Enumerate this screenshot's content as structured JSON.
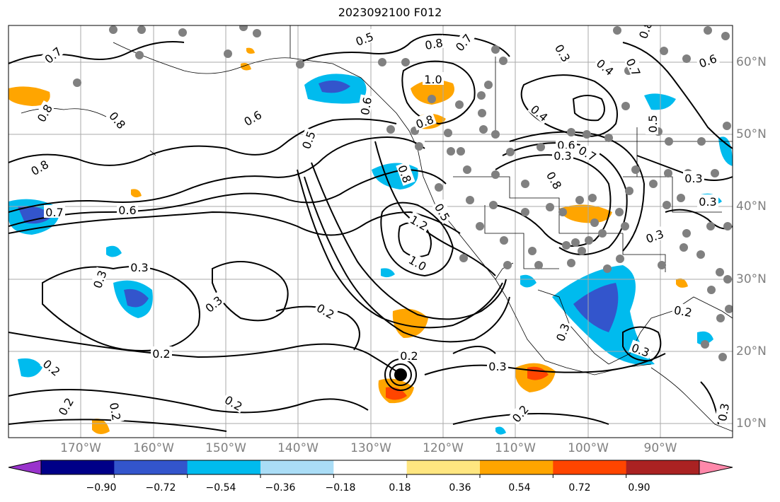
{
  "title": "2023092100 F012",
  "map": {
    "projection": "equirectangular",
    "lon_range": [
      -180,
      -80
    ],
    "lat_range": [
      8,
      65
    ],
    "gridlines": true,
    "lon_ticks": [
      "170°W",
      "160°W",
      "150°W",
      "140°W",
      "130°W",
      "120°W",
      "110°W",
      "100°W",
      "90°W"
    ],
    "lat_ticks": [
      "60°N",
      "50°N",
      "40°N",
      "30°N",
      "20°N",
      "10°N"
    ],
    "contour_labels": [
      "0.5",
      "0.8",
      "0.7",
      "0.7",
      "0.8",
      "0.8",
      "0.3",
      "0.4",
      "0.7",
      "0.6",
      "1.0",
      "0.8",
      "0.6",
      "0.4",
      "0.8",
      "0.5",
      "0.6",
      "0.7",
      "0.6",
      "0.5",
      "0.8",
      "0.3",
      "0.8",
      "0.7",
      "0.6",
      "0.8",
      "0.5",
      "0.3",
      "1.2",
      "1.0",
      "0.3",
      "0.3",
      "0.3",
      "0.3",
      "0.3",
      "0.2",
      "0.3",
      "0.2",
      "0.2",
      "0.2",
      "0.3",
      "0.2",
      "0.2",
      "0.2",
      "0.2",
      "0.3",
      "0.3",
      "0.2"
    ],
    "hurricane_marker": "filled-circle",
    "station_marker_color": "#808080"
  },
  "colorbar": {
    "extend": "both",
    "ticks": [
      "−0.90",
      "−0.72",
      "−0.54",
      "−0.36",
      "−0.18",
      "0.18",
      "0.36",
      "0.54",
      "0.72",
      "0.90"
    ],
    "colors": [
      "#9933cc",
      "#000088",
      "#3355cc",
      "#00bbee",
      "#aaddf6",
      "#ffffff",
      "#ffe680",
      "#ffa500",
      "#ff4500",
      "#aa2222",
      "#ff88aa"
    ]
  }
}
